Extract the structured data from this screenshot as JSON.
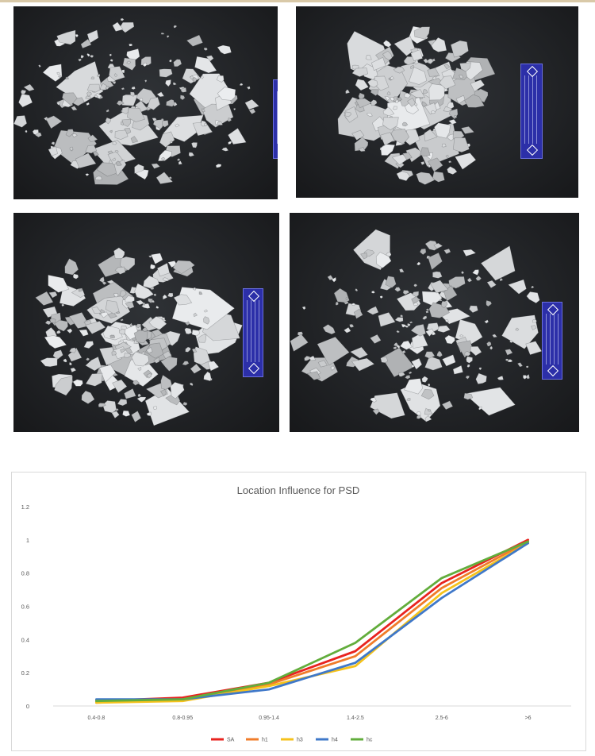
{
  "figure": {
    "photos": [
      {
        "name": "photo-sample-1",
        "label_icon": "specimen-label-icon"
      },
      {
        "name": "photo-sample-2",
        "label_icon": "specimen-label-icon"
      },
      {
        "name": "photo-sample-3",
        "label_icon": "specimen-label-icon"
      },
      {
        "name": "photo-sample-4",
        "label_icon": "specimen-label-icon"
      }
    ]
  },
  "chart_data": {
    "type": "line",
    "title": "Location Influence for PSD",
    "xlabel": "",
    "ylabel": "",
    "categories": [
      "0.4-0.8",
      "0.8-0.95",
      "0.95-1.4",
      "1.4-2.5",
      "2.5-6",
      ">6"
    ],
    "ylim": [
      0,
      1.2
    ],
    "yticks": [
      "0",
      "0.2",
      "0.4",
      "0.6",
      "0.8",
      "1",
      "1.2"
    ],
    "grid": false,
    "legend_position": "bottom",
    "series": [
      {
        "name": "SA",
        "color": "#e8231f",
        "values": [
          0.03,
          0.05,
          0.14,
          0.33,
          0.74,
          1.0
        ]
      },
      {
        "name": "h1",
        "color": "#f07c2a",
        "values": [
          0.02,
          0.04,
          0.13,
          0.3,
          0.71,
          0.99
        ]
      },
      {
        "name": "h3",
        "color": "#f5c21b",
        "values": [
          0.02,
          0.03,
          0.12,
          0.24,
          0.68,
          0.98
        ]
      },
      {
        "name": "h4",
        "color": "#3f78c9",
        "values": [
          0.04,
          0.04,
          0.1,
          0.26,
          0.65,
          0.98
        ]
      },
      {
        "name": "hc",
        "color": "#62ad3c",
        "values": [
          0.03,
          0.04,
          0.14,
          0.38,
          0.77,
          0.99
        ]
      }
    ]
  }
}
